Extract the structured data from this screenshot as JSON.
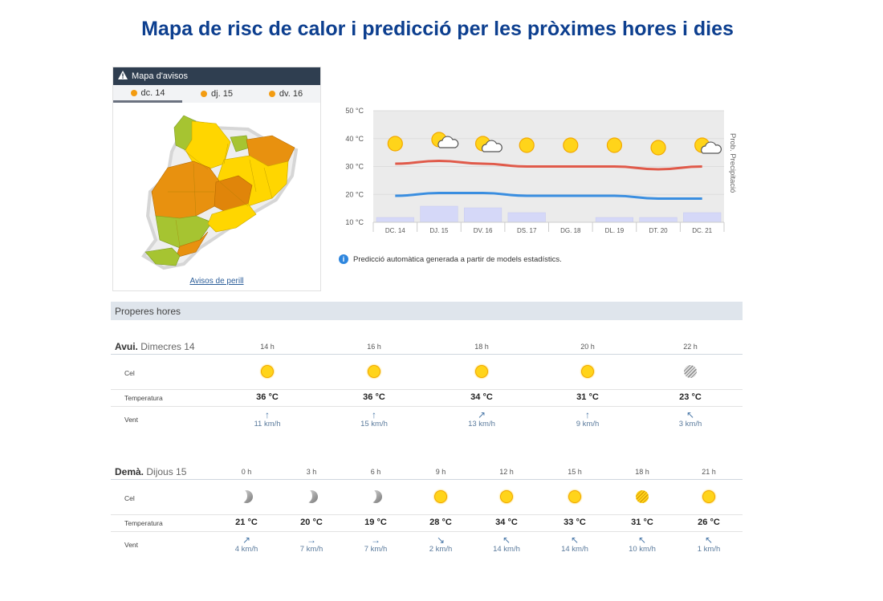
{
  "title": "Mapa de risc de calor i predicció per les pròximes hores i dies",
  "warnings": {
    "header": "Mapa d'avisos",
    "days": [
      {
        "label": "dc. 14",
        "color": "#f39c12",
        "active": true
      },
      {
        "label": "dj. 15",
        "color": "#f39c12",
        "active": false
      },
      {
        "label": "dv. 16",
        "color": "#f39c12",
        "active": false
      }
    ],
    "link": "Avisos de perill",
    "legend_colors": {
      "orange": "#e8910f",
      "yellow": "#ffd600",
      "green": "#a6c431"
    }
  },
  "chart_data": {
    "type": "line",
    "x": [
      "DC. 14",
      "DJ. 15",
      "DV. 16",
      "DS. 17",
      "DG. 18",
      "DL. 19",
      "DT. 20",
      "DC. 21"
    ],
    "ylim": [
      10,
      50
    ],
    "yticks": [
      "50 °C",
      "40 °C",
      "30 °C",
      "20 °C",
      "10 °C"
    ],
    "ytick_values": [
      50,
      40,
      30,
      20,
      10
    ],
    "y2label": "Prob. Precipitació",
    "series": [
      {
        "values": [
          31,
          32,
          31,
          30,
          30,
          30,
          29,
          30
        ],
        "color": "#e05a4a"
      },
      {
        "values": [
          19.5,
          20.5,
          20.5,
          19.5,
          19.5,
          19.5,
          18.5,
          18.5
        ],
        "color": "#3a8ee0"
      }
    ],
    "precipitation_level": [
      0.15,
      0.5,
      0.45,
      0.3,
      0,
      0.15,
      0.15,
      0.3
    ],
    "icons": [
      "sun",
      "sun-cloud",
      "sun-cloud",
      "sun",
      "sun",
      "sun",
      "sun",
      "sun-cloud"
    ]
  },
  "info_text": "Predicció automàtica generada a partir de models estadístics.",
  "upcoming": {
    "header": "Properes hores",
    "labels": {
      "sky": "Cel",
      "temperature": "Temperatura",
      "wind": "Vent"
    },
    "today": {
      "day_bold": "Avui.",
      "day_name": "Dimecres 14",
      "slots": [
        {
          "time": "14 h",
          "icon": "sun",
          "temp": "36 °C",
          "wind_arrow": "↑",
          "wind": "11 km/h"
        },
        {
          "time": "16 h",
          "icon": "sun",
          "temp": "36 °C",
          "wind_arrow": "↑",
          "wind": "15 km/h"
        },
        {
          "time": "18 h",
          "icon": "sun",
          "temp": "34 °C",
          "wind_arrow": "↗",
          "wind": "13 km/h"
        },
        {
          "time": "20 h",
          "icon": "sun",
          "temp": "31 °C",
          "wind_arrow": "↑",
          "wind": "9 km/h"
        },
        {
          "time": "22 h",
          "icon": "haze-night",
          "temp": "23 °C",
          "wind_arrow": "↖",
          "wind": "3 km/h"
        }
      ]
    },
    "tomorrow": {
      "day_bold": "Demà.",
      "day_name": "Dijous 15",
      "slots": [
        {
          "time": "0 h",
          "icon": "moon",
          "temp": "21 °C",
          "wind_arrow": "↗",
          "wind": "4 km/h"
        },
        {
          "time": "3 h",
          "icon": "moon",
          "temp": "20 °C",
          "wind_arrow": "→",
          "wind": "7 km/h"
        },
        {
          "time": "6 h",
          "icon": "moon",
          "temp": "19 °C",
          "wind_arrow": "→",
          "wind": "7 km/h"
        },
        {
          "time": "9 h",
          "icon": "sun",
          "temp": "28 °C",
          "wind_arrow": "↘",
          "wind": "2 km/h"
        },
        {
          "time": "12 h",
          "icon": "sun",
          "temp": "34 °C",
          "wind_arrow": "↖",
          "wind": "14 km/h"
        },
        {
          "time": "15 h",
          "icon": "sun",
          "temp": "33 °C",
          "wind_arrow": "↖",
          "wind": "14 km/h"
        },
        {
          "time": "18 h",
          "icon": "haze",
          "temp": "31 °C",
          "wind_arrow": "↖",
          "wind": "10 km/h"
        },
        {
          "time": "21 h",
          "icon": "sun",
          "temp": "26 °C",
          "wind_arrow": "↖",
          "wind": "1 km/h"
        }
      ]
    }
  }
}
